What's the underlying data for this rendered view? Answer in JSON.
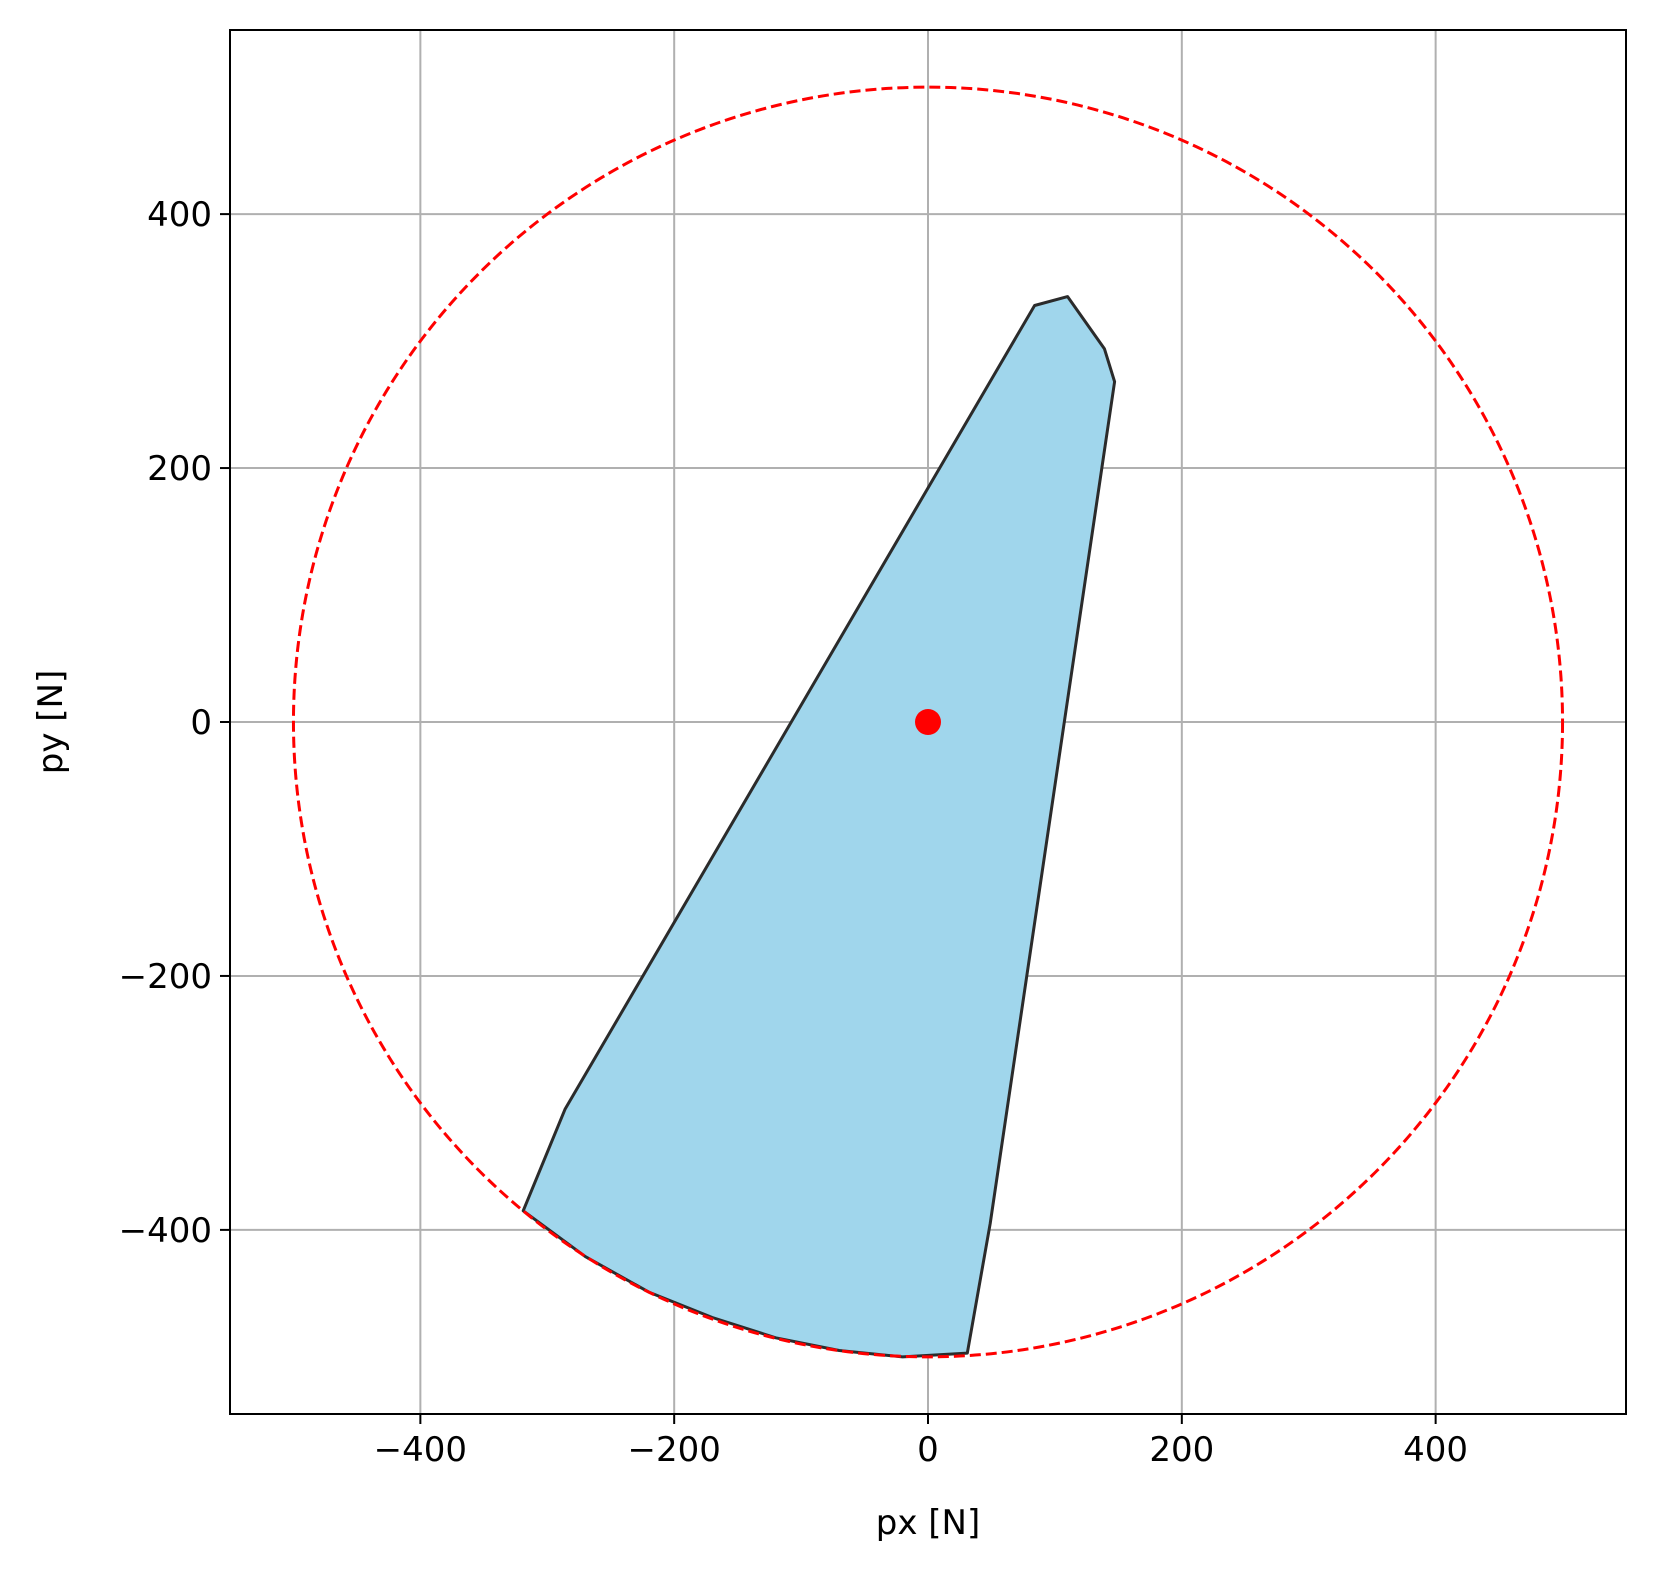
{
  "chart_data": {
    "type": "area",
    "title": "",
    "xlabel": "px [N]",
    "ylabel": "py [N]",
    "xlim": [
      -550,
      550
    ],
    "ylim": [
      -545,
      545
    ],
    "xticks": [
      -400,
      -200,
      0,
      200,
      400
    ],
    "yticks": [
      -400,
      -200,
      0,
      200,
      400
    ],
    "xtick_labels": [
      "−400",
      "−200",
      "0",
      "200",
      "400"
    ],
    "ytick_labels": [
      "−400",
      "−200",
      "0",
      "200",
      "400"
    ],
    "grid": true,
    "region": {
      "fill_color": "#a0d6ec",
      "edge_color": "#2b2b2b",
      "points": [
        [
          84,
          328
        ],
        [
          110,
          335
        ],
        [
          139,
          294
        ],
        [
          147,
          268
        ],
        [
          49,
          -395
        ],
        [
          31,
          -497
        ],
        [
          -20,
          -500
        ],
        [
          -70,
          -495
        ],
        [
          -120,
          -485
        ],
        [
          -170,
          -469
        ],
        [
          -220,
          -449
        ],
        [
          -270,
          -421
        ],
        [
          -319,
          -385
        ],
        [
          -286,
          -305
        ]
      ]
    },
    "circle": {
      "center": [
        0,
        0
      ],
      "radius": 500,
      "color": "#ff0000",
      "style": "dashed"
    },
    "marker": {
      "x": 0,
      "y": 0,
      "color": "#ff0000"
    }
  }
}
